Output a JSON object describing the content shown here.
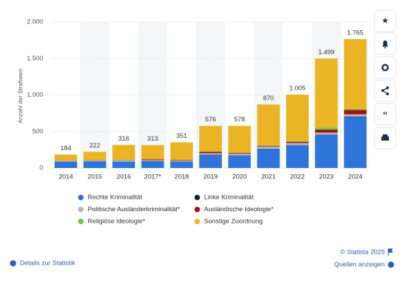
{
  "chart_data": {
    "type": "stacked_bar",
    "y_axis_label": "Anzahl der Straftaten",
    "categories": [
      "2014",
      "2015",
      "2016",
      "2017*",
      "2018",
      "2019",
      "2020",
      "2021",
      "2022",
      "2023",
      "2024"
    ],
    "series": [
      {
        "name": "Rechte Kriminalität",
        "color": "#2f74d8",
        "values": [
          85,
          90,
          85,
          90,
          85,
          180,
          170,
          260,
          310,
          450,
          700
        ]
      },
      {
        "name": "Linke Kriminalität",
        "color": "#0d2436",
        "values": [
          2,
          2,
          2,
          3,
          3,
          3,
          3,
          3,
          3,
          5,
          5
        ]
      },
      {
        "name": "Politische Ausländerkriminalität*",
        "color": "#b4b8bd",
        "values": [
          10,
          12,
          20,
          15,
          15,
          20,
          25,
          30,
          30,
          30,
          30
        ]
      },
      {
        "name": "Ausländische Ideologie*",
        "color": "#a30f14",
        "values": [
          3,
          3,
          4,
          10,
          8,
          20,
          10,
          10,
          15,
          40,
          60
        ]
      },
      {
        "name": "Religiöse Ideologie*",
        "color": "#7cc242",
        "values": [
          2,
          3,
          3,
          3,
          3,
          5,
          5,
          5,
          10,
          30,
          15
        ]
      },
      {
        "name": "Sonstige Zuordnung",
        "color": "#ebb425",
        "values": [
          82,
          112,
          202,
          192,
          237,
          348,
          365,
          562,
          637,
          944,
          955
        ]
      }
    ],
    "totals": {
      "values": [
        184,
        222,
        316,
        313,
        351,
        576,
        578,
        870,
        1005,
        1499,
        1765
      ],
      "value_labels": [
        "184",
        "222",
        "316",
        "313",
        "351",
        "576",
        "578",
        "870",
        "1.005",
        "1.499",
        "1.765"
      ]
    },
    "ylim": [
      0,
      2000
    ],
    "yticks": [
      0,
      500,
      {
        "value": 1000,
        "label": "1.000"
      },
      {
        "value": 1500,
        "label": "1.500"
      },
      {
        "value": 2000,
        "label": "2.000"
      }
    ],
    "grid": true,
    "legend_position": "bottom"
  },
  "footer": {
    "copyright": "© Statista 2025",
    "details": "Details zur Statistik",
    "sources": "Quellen anzeigen"
  }
}
